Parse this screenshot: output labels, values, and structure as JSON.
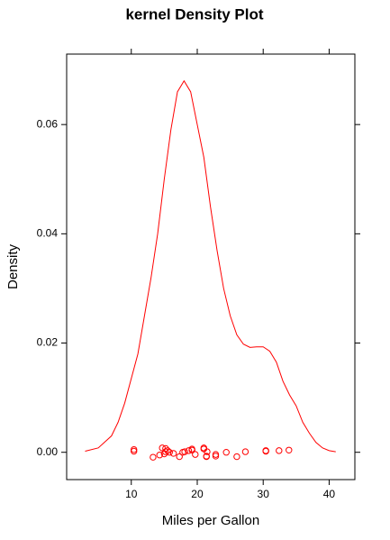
{
  "chart_data": {
    "type": "density",
    "title": "kernel Density Plot",
    "x_label": "Miles per Gallon",
    "y_label": "Density",
    "color": "#ff0000",
    "x": [
      3,
      5,
      7,
      8,
      9,
      10,
      11,
      12,
      13,
      14,
      15,
      16,
      17,
      18,
      19,
      20,
      21,
      22,
      23,
      24,
      25,
      26,
      27,
      28,
      29,
      30,
      31,
      32,
      33,
      34,
      35,
      36,
      37,
      38,
      39,
      40,
      41
    ],
    "y": [
      0.0002,
      0.0008,
      0.003,
      0.0055,
      0.009,
      0.0135,
      0.018,
      0.025,
      0.032,
      0.04,
      0.05,
      0.059,
      0.066,
      0.068,
      0.066,
      0.06,
      0.054,
      0.045,
      0.037,
      0.03,
      0.025,
      0.0215,
      0.0198,
      0.0192,
      0.0193,
      0.0193,
      0.0185,
      0.0165,
      0.013,
      0.0105,
      0.0085,
      0.0055,
      0.0035,
      0.0018,
      0.0008,
      0.0003,
      0.0001
    ],
    "points": {
      "x": [
        21,
        21,
        22.8,
        21.4,
        18.7,
        18.1,
        14.3,
        24.4,
        22.8,
        19.2,
        17.8,
        16.4,
        17.3,
        15.2,
        10.4,
        10.4,
        14.7,
        32.4,
        30.4,
        33.9,
        21.5,
        15.5,
        15.2,
        13.3,
        19.2,
        27.3,
        26,
        30.4,
        15.8,
        19.7,
        15,
        21.4
      ],
      "y": [
        0.0008,
        0.0006,
        -0.0007,
        -0.0008,
        0.0003,
        0.0001,
        -0.0005,
        0,
        -0.0004,
        0.0004,
        0,
        -0.0002,
        -0.0008,
        0.0007,
        0.0005,
        0.0002,
        0.0008,
        0.0003,
        0.0002,
        0.0004,
        0.0001,
        0.0003,
        0.0001,
        -0.0009,
        0.0006,
        0.0001,
        -0.0008,
        0.0003,
        0,
        -0.0004,
        -0.0003,
        -0.0007
      ]
    },
    "xlim": [
      0.2,
      43.9
    ],
    "ylim": [
      -0.005,
      0.0729
    ],
    "xticks": [
      10,
      20,
      30,
      40
    ],
    "yticks": [
      {
        "value": 0,
        "label": "0.00"
      },
      {
        "value": 0.02,
        "label": "0.02"
      },
      {
        "value": 0.04,
        "label": "0.04"
      },
      {
        "value": 0.06,
        "label": "0.06"
      }
    ]
  }
}
